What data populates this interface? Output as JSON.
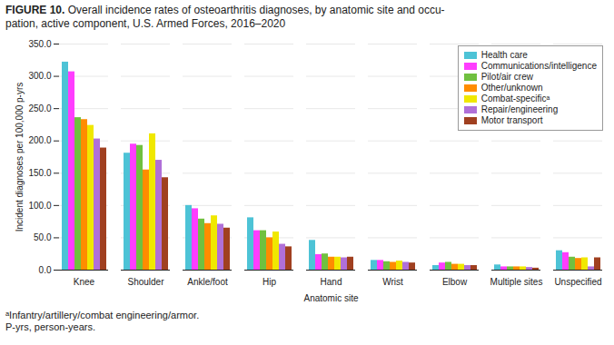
{
  "chart_data": {
    "type": "bar",
    "title": "FIGURE 10.",
    "subtitle": "Overall incidence rates of osteoarthritis diagnoses, by anatomic site and occu-\npation, active component, U.S. Armed Forces, 2016–2020",
    "xlabel": "Anatomic site",
    "ylabel": "Incident diagnoses per 100,000 p-yrs",
    "categories": [
      "Knee",
      "Shoulder",
      "Ankle/foot",
      "Hip",
      "Hand",
      "Wrist",
      "Elbow",
      "Multiple sites",
      "Unspecified"
    ],
    "series": [
      {
        "name": "Health care",
        "color": "#4dc3d6",
        "values": [
          322,
          181,
          100,
          81,
          46,
          15,
          7,
          8,
          30
        ]
      },
      {
        "name": "Communications/intelligence",
        "color": "#ff3dff",
        "values": [
          307,
          195,
          95,
          61,
          24,
          15,
          11,
          5,
          27
        ]
      },
      {
        "name": "Pilot/air crew",
        "color": "#70c040",
        "values": [
          236,
          193,
          79,
          61,
          25,
          13,
          12,
          5,
          20
        ]
      },
      {
        "name": "Other/unknown",
        "color": "#ff8c00",
        "values": [
          233,
          155,
          72,
          50,
          20,
          12,
          9,
          5,
          18
        ]
      },
      {
        "name": "Combat-specificᵃ",
        "color": "#f0e800",
        "values": [
          224,
          211,
          84,
          59,
          20,
          14,
          9,
          5,
          19
        ]
      },
      {
        "name": "Repair/engineering",
        "color": "#b070d8",
        "values": [
          203,
          170,
          71,
          40,
          19,
          12,
          7,
          4,
          5
        ]
      },
      {
        "name": "Motor transport",
        "color": "#a04020",
        "values": [
          189,
          143,
          65,
          36,
          20,
          11,
          7,
          3,
          19
        ]
      }
    ],
    "ylim": [
      0,
      350
    ],
    "yticks": [
      {
        "value": 0,
        "label": "0.0"
      },
      {
        "value": 50,
        "label": "50.0"
      },
      {
        "value": 100,
        "label": "100.0"
      },
      {
        "value": 150,
        "label": "150.0"
      },
      {
        "value": 200,
        "label": "200.0"
      },
      {
        "value": 250,
        "label": "250.0"
      },
      {
        "value": 300,
        "label": "300.0"
      },
      {
        "value": 350,
        "label": "350.0"
      }
    ],
    "grid": true,
    "legend": "upper right",
    "annotations": [
      "ᵃInfantry/artillery/combat engineering/armor.",
      "P-yrs, person-years."
    ]
  }
}
